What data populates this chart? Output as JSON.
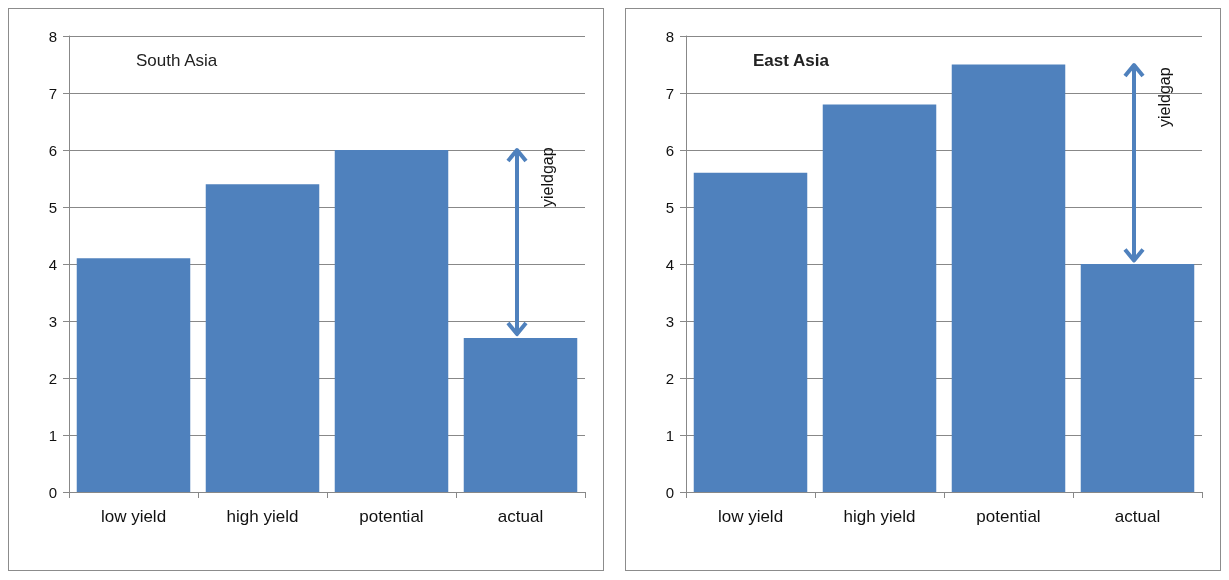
{
  "chart_data": [
    {
      "type": "bar",
      "title": "South Asia",
      "categories": [
        "low yield",
        "high yield",
        "potential",
        "actual"
      ],
      "values": [
        4.1,
        5.4,
        6.0,
        2.7
      ],
      "color": "#4f81bd",
      "ylim": [
        0,
        8
      ],
      "yticks": [
        0,
        1,
        2,
        3,
        4,
        5,
        6,
        7,
        8
      ],
      "grid": "y",
      "annotations": [
        "yieldgap"
      ]
    },
    {
      "type": "bar",
      "title": "East Asia",
      "categories": [
        "low yield",
        "high yield",
        "potential",
        "actual"
      ],
      "values": [
        5.6,
        6.8,
        7.5,
        4.0
      ],
      "color": "#4f81bd",
      "ylim": [
        0,
        8
      ],
      "yticks": [
        0,
        1,
        2,
        3,
        4,
        5,
        6,
        7,
        8
      ],
      "grid": "y",
      "annotations": [
        "yieldgap"
      ]
    }
  ]
}
